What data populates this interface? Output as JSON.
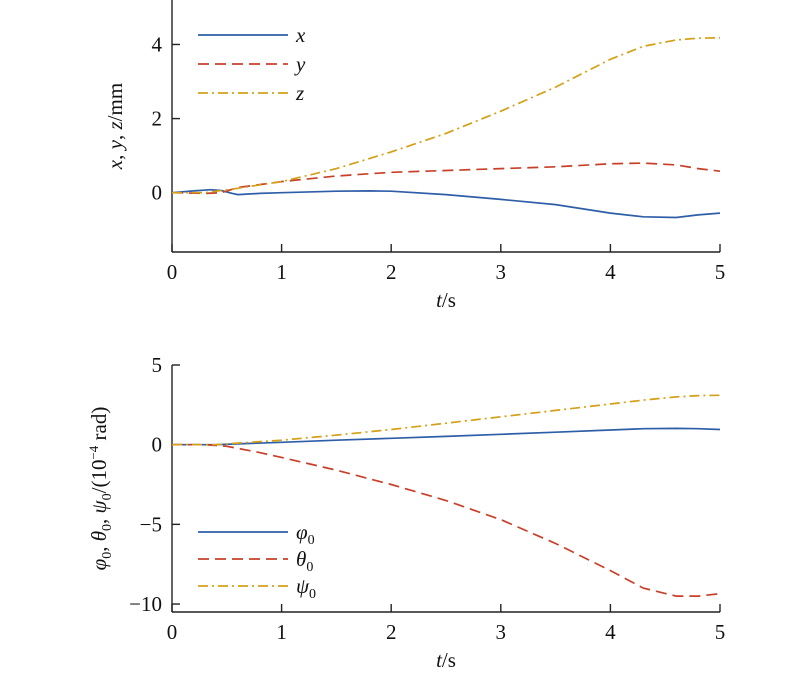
{
  "colors": {
    "solid": "#2f5ea8",
    "dashed": "#c8402a",
    "dashdot": "#d4a017",
    "axis": "#222222"
  },
  "chart_data": [
    {
      "type": "line",
      "title": "",
      "xlabel": "t/s",
      "ylabel": "x, y, z/mm",
      "xlim": [
        0,
        5
      ],
      "ylim": [
        -1.6,
        5.2
      ],
      "xticks": [
        0,
        1,
        2,
        3,
        4,
        5
      ],
      "yticks": [
        0,
        2,
        4
      ],
      "legend_position": "top-left",
      "grid": false,
      "series": [
        {
          "name": "x",
          "style": "solid",
          "x": [
            0,
            0.2,
            0.35,
            0.45,
            0.55,
            0.6,
            0.8,
            1.0,
            1.5,
            1.8,
            2.0,
            2.5,
            3.0,
            3.5,
            4.0,
            4.3,
            4.6,
            4.8,
            5.0
          ],
          "y": [
            0,
            0.05,
            0.08,
            0.06,
            -0.02,
            -0.05,
            -0.02,
            0.0,
            0.04,
            0.05,
            0.04,
            -0.05,
            -0.18,
            -0.32,
            -0.55,
            -0.65,
            -0.67,
            -0.6,
            -0.55
          ]
        },
        {
          "name": "y",
          "style": "dashed",
          "x": [
            0,
            0.3,
            0.45,
            0.6,
            0.8,
            1.0,
            1.5,
            2.0,
            2.5,
            3.0,
            3.5,
            4.0,
            4.3,
            4.6,
            4.8,
            5.0
          ],
          "y": [
            0,
            -0.02,
            0.0,
            0.14,
            0.22,
            0.3,
            0.45,
            0.55,
            0.6,
            0.65,
            0.7,
            0.78,
            0.8,
            0.75,
            0.65,
            0.58
          ]
        },
        {
          "name": "z",
          "style": "dashdot",
          "x": [
            0,
            0.3,
            0.6,
            1.0,
            1.5,
            2.0,
            2.5,
            3.0,
            3.5,
            4.0,
            4.3,
            4.6,
            4.8,
            5.0
          ],
          "y": [
            0,
            0.0,
            0.12,
            0.3,
            0.65,
            1.1,
            1.6,
            2.2,
            2.85,
            3.6,
            3.95,
            4.12,
            4.17,
            4.18
          ]
        }
      ]
    },
    {
      "type": "line",
      "title": "",
      "xlabel": "t/s",
      "ylabel": "φ0, θ0, ψ0/(10⁻⁴ rad)",
      "xlim": [
        0,
        5
      ],
      "ylim": [
        -10.5,
        5
      ],
      "xticks": [
        0,
        1,
        2,
        3,
        4,
        5
      ],
      "yticks": [
        5,
        0,
        -5,
        -10
      ],
      "ytick_labels": [
        "5",
        "0",
        "−5",
        "−10"
      ],
      "legend_position": "bottom-left",
      "grid": false,
      "series": [
        {
          "name": "φ0",
          "style": "solid",
          "x": [
            0,
            0.4,
            0.6,
            1.0,
            1.5,
            2.0,
            2.5,
            3.0,
            3.5,
            4.0,
            4.3,
            4.6,
            4.8,
            5.0
          ],
          "y": [
            0,
            0.0,
            0.05,
            0.15,
            0.28,
            0.4,
            0.52,
            0.65,
            0.78,
            0.92,
            1.0,
            1.02,
            1.0,
            0.95
          ]
        },
        {
          "name": "θ0",
          "style": "dashed",
          "x": [
            0,
            0.3,
            0.5,
            0.8,
            1.0,
            1.5,
            2.0,
            2.5,
            3.0,
            3.5,
            4.0,
            4.3,
            4.6,
            4.8,
            5.0
          ],
          "y": [
            0,
            0.0,
            -0.1,
            -0.5,
            -0.8,
            -1.6,
            -2.5,
            -3.5,
            -4.7,
            -6.2,
            -7.9,
            -9.0,
            -9.5,
            -9.5,
            -9.35
          ]
        },
        {
          "name": "ψ0",
          "style": "dashdot",
          "x": [
            0,
            0.4,
            0.6,
            1.0,
            1.5,
            2.0,
            2.5,
            3.0,
            3.5,
            4.0,
            4.3,
            4.6,
            4.8,
            5.0
          ],
          "y": [
            0,
            0.0,
            0.1,
            0.28,
            0.6,
            0.95,
            1.35,
            1.75,
            2.15,
            2.55,
            2.8,
            3.0,
            3.08,
            3.1
          ]
        }
      ]
    }
  ]
}
